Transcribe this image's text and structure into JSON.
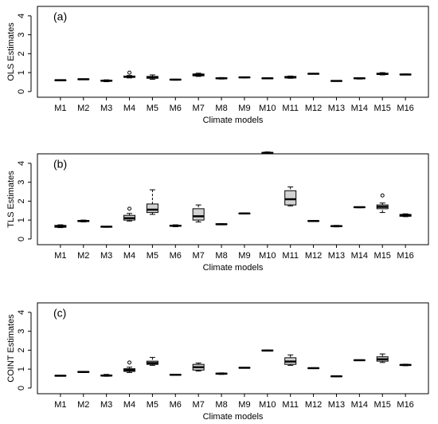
{
  "chart_data": [
    {
      "type": "box",
      "title": "(a)",
      "ylabel": "OLS  Estimates",
      "xlabel": "Climate models",
      "categories": [
        "M1",
        "M2",
        "M3",
        "M4",
        "M5",
        "M6",
        "M7",
        "M8",
        "M9",
        "M10",
        "M11",
        "M12",
        "M13",
        "M14",
        "M15",
        "M16"
      ],
      "ylim": [
        -0.3,
        4.5
      ],
      "yticks": [
        0,
        1,
        2,
        3,
        4
      ],
      "box_color": "#d3d3d3",
      "boxes": [
        {
          "min": 0.57,
          "q1": 0.58,
          "median": 0.6,
          "q3": 0.61,
          "max": 0.62,
          "outliers": []
        },
        {
          "min": 0.63,
          "q1": 0.64,
          "median": 0.65,
          "q3": 0.66,
          "max": 0.67,
          "outliers": []
        },
        {
          "min": 0.52,
          "q1": 0.55,
          "median": 0.57,
          "q3": 0.6,
          "max": 0.62,
          "outliers": []
        },
        {
          "min": 0.72,
          "q1": 0.75,
          "median": 0.78,
          "q3": 0.82,
          "max": 0.85,
          "outliers": [
            1.0
          ]
        },
        {
          "min": 0.65,
          "q1": 0.7,
          "median": 0.75,
          "q3": 0.8,
          "max": 0.88,
          "outliers": []
        },
        {
          "min": 0.6,
          "q1": 0.62,
          "median": 0.63,
          "q3": 0.64,
          "max": 0.65,
          "outliers": []
        },
        {
          "min": 0.8,
          "q1": 0.83,
          "median": 0.88,
          "q3": 0.93,
          "max": 0.97,
          "outliers": []
        },
        {
          "min": 0.66,
          "q1": 0.68,
          "median": 0.7,
          "q3": 0.72,
          "max": 0.74,
          "outliers": []
        },
        {
          "min": 0.72,
          "q1": 0.73,
          "median": 0.75,
          "q3": 0.76,
          "max": 0.77,
          "outliers": []
        },
        {
          "min": 0.67,
          "q1": 0.68,
          "median": 0.7,
          "q3": 0.71,
          "max": 0.72,
          "outliers": []
        },
        {
          "min": 0.7,
          "q1": 0.72,
          "median": 0.75,
          "q3": 0.8,
          "max": 0.82,
          "outliers": []
        },
        {
          "min": 0.92,
          "q1": 0.93,
          "median": 0.94,
          "q3": 0.95,
          "max": 0.96,
          "outliers": []
        },
        {
          "min": 0.54,
          "q1": 0.55,
          "median": 0.56,
          "q3": 0.57,
          "max": 0.58,
          "outliers": []
        },
        {
          "min": 0.66,
          "q1": 0.68,
          "median": 0.7,
          "q3": 0.72,
          "max": 0.73,
          "outliers": []
        },
        {
          "min": 0.88,
          "q1": 0.9,
          "median": 0.93,
          "q3": 0.97,
          "max": 1.0,
          "outliers": []
        },
        {
          "min": 0.88,
          "q1": 0.89,
          "median": 0.9,
          "q3": 0.92,
          "max": 0.93,
          "outliers": []
        }
      ]
    },
    {
      "type": "box",
      "title": "(b)",
      "ylabel": "TLS  Estimates",
      "xlabel": "Climate models",
      "categories": [
        "M1",
        "M2",
        "M3",
        "M4",
        "M5",
        "M6",
        "M7",
        "M8",
        "M9",
        "M10",
        "M11",
        "M12",
        "M13",
        "M14",
        "M15",
        "M16"
      ],
      "ylim": [
        -0.3,
        4.5
      ],
      "yticks": [
        0,
        1,
        2,
        3,
        4
      ],
      "box_color": "#d3d3d3",
      "boxes": [
        {
          "min": 0.6,
          "q1": 0.62,
          "median": 0.67,
          "q3": 0.72,
          "max": 0.75,
          "outliers": []
        },
        {
          "min": 0.9,
          "q1": 0.92,
          "median": 0.95,
          "q3": 0.98,
          "max": 1.0,
          "outliers": []
        },
        {
          "min": 0.62,
          "q1": 0.63,
          "median": 0.65,
          "q3": 0.66,
          "max": 0.67,
          "outliers": []
        },
        {
          "min": 0.95,
          "q1": 1.0,
          "median": 1.1,
          "q3": 1.25,
          "max": 1.35,
          "outliers": [
            1.6
          ]
        },
        {
          "min": 1.3,
          "q1": 1.4,
          "median": 1.55,
          "q3": 1.85,
          "max": 2.6,
          "outliers": []
        },
        {
          "min": 0.65,
          "q1": 0.67,
          "median": 0.7,
          "q3": 0.73,
          "max": 0.75,
          "outliers": []
        },
        {
          "min": 0.9,
          "q1": 1.0,
          "median": 1.2,
          "q3": 1.6,
          "max": 1.8,
          "outliers": []
        },
        {
          "min": 0.75,
          "q1": 0.77,
          "median": 0.78,
          "q3": 0.8,
          "max": 0.81,
          "outliers": []
        },
        {
          "min": 1.32,
          "q1": 1.33,
          "median": 1.35,
          "q3": 1.36,
          "max": 1.37,
          "outliers": []
        },
        {
          "min": 4.5,
          "q1": 4.52,
          "median": 4.55,
          "q3": 4.57,
          "max": 4.6,
          "outliers": []
        },
        {
          "min": 1.75,
          "q1": 1.8,
          "median": 2.1,
          "q3": 2.55,
          "max": 2.75,
          "outliers": []
        },
        {
          "min": 0.93,
          "q1": 0.94,
          "median": 0.95,
          "q3": 0.96,
          "max": 0.97,
          "outliers": []
        },
        {
          "min": 0.64,
          "q1": 0.66,
          "median": 0.68,
          "q3": 0.7,
          "max": 0.72,
          "outliers": []
        },
        {
          "min": 1.65,
          "q1": 1.66,
          "median": 1.68,
          "q3": 1.69,
          "max": 1.7,
          "outliers": []
        },
        {
          "min": 1.4,
          "q1": 1.6,
          "median": 1.7,
          "q3": 1.8,
          "max": 1.9,
          "outliers": [
            2.3
          ]
        },
        {
          "min": 1.18,
          "q1": 1.2,
          "median": 1.25,
          "q3": 1.3,
          "max": 1.33,
          "outliers": []
        }
      ]
    },
    {
      "type": "box",
      "title": "(c)",
      "ylabel": "COINT Estimates",
      "xlabel": "Climate models",
      "categories": [
        "M1",
        "M2",
        "M3",
        "M4",
        "M5",
        "M6",
        "M7",
        "M8",
        "M9",
        "M10",
        "M11",
        "M12",
        "M13",
        "M14",
        "M15",
        "M16"
      ],
      "ylim": [
        -0.3,
        4.5
      ],
      "yticks": [
        0,
        1,
        2,
        3,
        4
      ],
      "box_color": "#d3d3d3",
      "boxes": [
        {
          "min": 0.63,
          "q1": 0.64,
          "median": 0.65,
          "q3": 0.66,
          "max": 0.67,
          "outliers": []
        },
        {
          "min": 0.82,
          "q1": 0.83,
          "median": 0.85,
          "q3": 0.87,
          "max": 0.88,
          "outliers": []
        },
        {
          "min": 0.62,
          "q1": 0.64,
          "median": 0.66,
          "q3": 0.68,
          "max": 0.72,
          "outliers": []
        },
        {
          "min": 0.82,
          "q1": 0.88,
          "median": 0.95,
          "q3": 1.02,
          "max": 1.1,
          "outliers": [
            1.35
          ]
        },
        {
          "min": 1.2,
          "q1": 1.25,
          "median": 1.32,
          "q3": 1.42,
          "max": 1.62,
          "outliers": []
        },
        {
          "min": 0.68,
          "q1": 0.69,
          "median": 0.7,
          "q3": 0.71,
          "max": 0.72,
          "outliers": []
        },
        {
          "min": 0.9,
          "q1": 0.95,
          "median": 1.1,
          "q3": 1.25,
          "max": 1.32,
          "outliers": []
        },
        {
          "min": 0.72,
          "q1": 0.74,
          "median": 0.76,
          "q3": 0.78,
          "max": 0.8,
          "outliers": []
        },
        {
          "min": 1.05,
          "q1": 1.06,
          "median": 1.07,
          "q3": 1.08,
          "max": 1.09,
          "outliers": []
        },
        {
          "min": 1.96,
          "q1": 1.97,
          "median": 1.98,
          "q3": 2.0,
          "max": 2.01,
          "outliers": []
        },
        {
          "min": 1.2,
          "q1": 1.25,
          "median": 1.4,
          "q3": 1.6,
          "max": 1.75,
          "outliers": []
        },
        {
          "min": 1.03,
          "q1": 1.04,
          "median": 1.05,
          "q3": 1.06,
          "max": 1.07,
          "outliers": []
        },
        {
          "min": 0.6,
          "q1": 0.61,
          "median": 0.62,
          "q3": 0.63,
          "max": 0.64,
          "outliers": []
        },
        {
          "min": 1.45,
          "q1": 1.46,
          "median": 1.47,
          "q3": 1.48,
          "max": 1.49,
          "outliers": []
        },
        {
          "min": 1.35,
          "q1": 1.42,
          "median": 1.52,
          "q3": 1.65,
          "max": 1.8,
          "outliers": []
        },
        {
          "min": 1.18,
          "q1": 1.2,
          "median": 1.22,
          "q3": 1.24,
          "max": 1.26,
          "outliers": []
        }
      ]
    }
  ]
}
